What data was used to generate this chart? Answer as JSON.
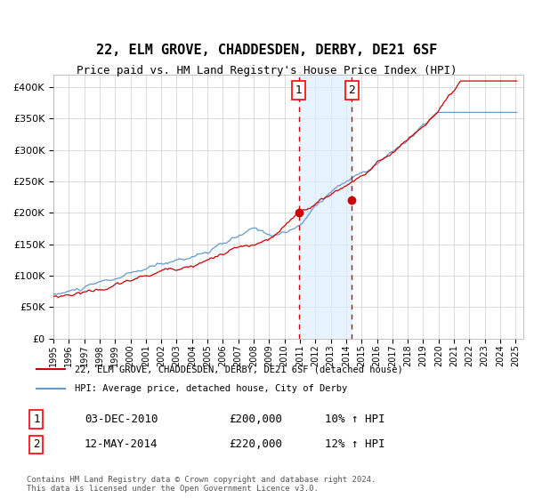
{
  "title": "22, ELM GROVE, CHADDESDEN, DERBY, DE21 6SF",
  "subtitle": "Price paid vs. HM Land Registry's House Price Index (HPI)",
  "legend_line1": "22, ELM GROVE, CHADDESDEN, DERBY, DE21 6SF (detached house)",
  "legend_line2": "HPI: Average price, detached house, City of Derby",
  "transaction1_label": "1",
  "transaction1_date": "03-DEC-2010",
  "transaction1_price": "£200,000",
  "transaction1_hpi": "10% ↑ HPI",
  "transaction1_x": 2010.917,
  "transaction1_y": 200000,
  "transaction2_label": "2",
  "transaction2_date": "12-MAY-2014",
  "transaction2_price": "£220,000",
  "transaction2_hpi": "12% ↑ HPI",
  "transaction2_x": 2014.365,
  "transaction2_y": 220000,
  "footer": "Contains HM Land Registry data © Crown copyright and database right 2024.\nThis data is licensed under the Open Government Licence v3.0.",
  "hpi_color": "#6699cc",
  "price_color": "#cc0000",
  "background_color": "#ffffff",
  "plot_bg_color": "#ffffff",
  "grid_color": "#cccccc",
  "shade_color": "#ddeeff",
  "vline_color": "#cc0000",
  "ylim": [
    0,
    420000
  ],
  "xlim_start": 1995,
  "xlim_end": 2025.5
}
